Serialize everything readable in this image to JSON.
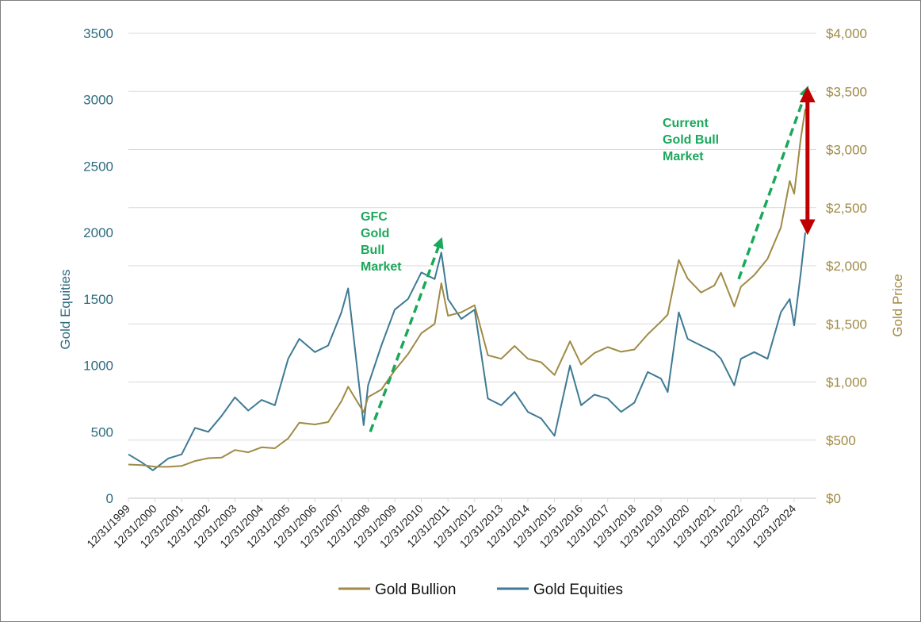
{
  "chart_data": {
    "type": "line",
    "title": "",
    "ylabel_left": "Gold Equities",
    "ylabel_right": "Gold Price",
    "ylim_left": [
      0,
      3500
    ],
    "ylim_right": [
      0,
      4000
    ],
    "yticks_left": [
      "0",
      "500",
      "1000",
      "1500",
      "2000",
      "2500",
      "3000",
      "3500"
    ],
    "yticks_right": [
      "$0",
      "$500",
      "$1,000",
      "$1,500",
      "$2,000",
      "$2,500",
      "$3,000",
      "$3,500",
      "$4,000"
    ],
    "xticks": [
      "12/31/1999",
      "12/31/2000",
      "12/31/2001",
      "12/31/2002",
      "12/31/2003",
      "12/31/2004",
      "12/31/2005",
      "12/31/2006",
      "12/31/2007",
      "12/31/2008",
      "12/31/2009",
      "12/31/2010",
      "12/31/2011",
      "12/31/2012",
      "12/31/2013",
      "12/31/2014",
      "12/31/2015",
      "12/31/2016",
      "12/31/2017",
      "12/31/2018",
      "12/31/2019",
      "12/31/2020",
      "12/31/2021",
      "12/31/2022",
      "12/31/2023",
      "12/31/2024"
    ],
    "grid": "horizontal",
    "legend": "bottom",
    "series": [
      {
        "name": "Gold Bullion",
        "axis": "right",
        "color": "#a08a45",
        "x": [
          "1999-12",
          "2000-06",
          "2000-12",
          "2001-06",
          "2001-12",
          "2002-06",
          "2002-12",
          "2003-06",
          "2003-12",
          "2004-06",
          "2004-12",
          "2005-06",
          "2005-12",
          "2006-05",
          "2006-12",
          "2007-06",
          "2007-12",
          "2008-03",
          "2008-10",
          "2008-12",
          "2009-06",
          "2009-12",
          "2010-06",
          "2010-12",
          "2011-06",
          "2011-09",
          "2011-12",
          "2012-06",
          "2012-12",
          "2013-06",
          "2013-12",
          "2014-06",
          "2014-12",
          "2015-06",
          "2015-12",
          "2016-07",
          "2016-12",
          "2017-06",
          "2017-12",
          "2018-06",
          "2018-12",
          "2019-06",
          "2019-12",
          "2020-03",
          "2020-08",
          "2020-12",
          "2021-06",
          "2021-12",
          "2022-03",
          "2022-09",
          "2022-12",
          "2023-06",
          "2023-12",
          "2024-06",
          "2024-10",
          "2024-12",
          "2025-03",
          "2025-05"
        ],
        "values": [
          290,
          285,
          272,
          270,
          278,
          320,
          345,
          350,
          415,
          395,
          438,
          430,
          515,
          650,
          635,
          655,
          835,
          960,
          740,
          870,
          935,
          1100,
          1240,
          1420,
          1500,
          1850,
          1570,
          1600,
          1660,
          1230,
          1200,
          1310,
          1200,
          1170,
          1060,
          1350,
          1150,
          1250,
          1300,
          1260,
          1280,
          1410,
          1520,
          1580,
          2050,
          1890,
          1770,
          1830,
          1940,
          1650,
          1820,
          1920,
          2060,
          2330,
          2730,
          2620,
          3100,
          3350
        ]
      },
      {
        "name": "Gold Equities",
        "axis": "left",
        "color": "#3d7a94",
        "x": [
          "1999-12",
          "2000-06",
          "2000-11",
          "2001-06",
          "2001-12",
          "2002-06",
          "2002-12",
          "2003-06",
          "2003-12",
          "2004-06",
          "2004-12",
          "2005-06",
          "2005-12",
          "2006-05",
          "2006-12",
          "2007-06",
          "2007-12",
          "2008-03",
          "2008-10",
          "2008-12",
          "2009-06",
          "2009-12",
          "2010-06",
          "2010-12",
          "2011-06",
          "2011-09",
          "2011-12",
          "2012-06",
          "2012-12",
          "2013-06",
          "2013-12",
          "2014-06",
          "2014-12",
          "2015-06",
          "2015-12",
          "2016-07",
          "2016-12",
          "2017-06",
          "2017-12",
          "2018-06",
          "2018-12",
          "2019-06",
          "2019-12",
          "2020-03",
          "2020-08",
          "2020-12",
          "2021-06",
          "2021-12",
          "2022-03",
          "2022-09",
          "2022-12",
          "2023-06",
          "2023-12",
          "2024-06",
          "2024-10",
          "2024-12",
          "2025-03",
          "2025-05"
        ],
        "values": [
          330,
          270,
          210,
          300,
          330,
          530,
          500,
          620,
          760,
          660,
          740,
          700,
          1050,
          1200,
          1100,
          1150,
          1400,
          1580,
          550,
          850,
          1150,
          1420,
          1500,
          1700,
          1650,
          1850,
          1500,
          1350,
          1420,
          750,
          700,
          800,
          650,
          600,
          470,
          1000,
          700,
          780,
          750,
          650,
          720,
          950,
          900,
          800,
          1400,
          1200,
          1150,
          1100,
          1050,
          850,
          1050,
          1100,
          1050,
          1400,
          1500,
          1300,
          1700,
          2000
        ]
      }
    ],
    "annotations": [
      {
        "text": [
          "GFC",
          "Gold",
          "Bull",
          "Market"
        ],
        "color": "#1aa85a",
        "arrow_from": [
          "2009-01",
          500
        ],
        "arrow_to": [
          "2011-09",
          1950
        ],
        "style": "dashed"
      },
      {
        "text": [
          "Current",
          "Gold Bull",
          "Market"
        ],
        "color": "#1aa85a",
        "arrow_from": [
          "2022-11",
          1650
        ],
        "arrow_to": [
          "2025-06",
          3090
        ],
        "style": "dashed"
      },
      {
        "text": [],
        "color": "#c00000",
        "arrow_from": [
          "2025-06",
          2005
        ],
        "arrow_to": [
          "2025-06",
          3075
        ],
        "style": "double-headed"
      }
    ]
  }
}
